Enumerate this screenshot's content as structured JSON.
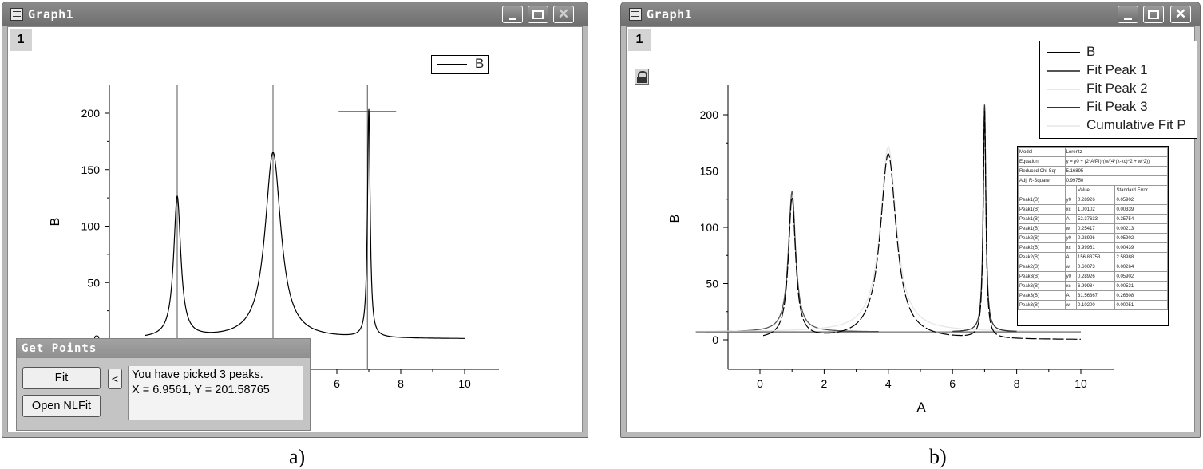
{
  "windows": [
    {
      "title": "Graph1",
      "layer": "1",
      "legend": [
        "B"
      ]
    },
    {
      "title": "Graph1",
      "layer": "1",
      "legend": [
        "B",
        "Fit Peak 1",
        "Fit Peak 2",
        "Fit Peak 3",
        "Cumulative Fit P"
      ]
    }
  ],
  "get_points": {
    "title": "Get Points",
    "fit_label": "Fit",
    "collapse_label": "<",
    "open_nlfit_label": "Open NLFit",
    "message_line1": "You have picked 3 peaks.",
    "message_line2": "X = 6.9561, Y = 201.58765"
  },
  "captions": [
    "a)",
    "b)"
  ],
  "colors": {
    "titlebar": "#7a7a7a",
    "dialog": "#c4c4c4",
    "peak2": "#e6e6e6"
  },
  "results_table": {
    "header": [
      "Model",
      "Lorentz"
    ],
    "rows": [
      [
        "Equation",
        "y = y0 + (2*A/PI)*(w/(4*(x-xc)^2 + w^2))"
      ],
      [
        "Reduced Chi-Sqr",
        "5.16895"
      ],
      [
        "Adj. R-Square",
        "0.99750"
      ],
      [
        "",
        "",
        "Value",
        "Standard Error"
      ],
      [
        "Peak1(B)",
        "y0",
        "0.28926",
        "0.05902"
      ],
      [
        "Peak1(B)",
        "xc",
        "1.00102",
        "0.00339"
      ],
      [
        "Peak1(B)",
        "A",
        "52.37633",
        "0.35754"
      ],
      [
        "Peak1(B)",
        "w",
        "0.25417",
        "0.00213"
      ],
      [
        "Peak2(B)",
        "y0",
        "0.28926",
        "0.05902"
      ],
      [
        "Peak2(B)",
        "xc",
        "3.99961",
        "0.00439"
      ],
      [
        "Peak2(B)",
        "A",
        "156.83753",
        "2.58988"
      ],
      [
        "Peak2(B)",
        "w",
        "0.60073",
        "0.00264"
      ],
      [
        "Peak3(B)",
        "y0",
        "0.28926",
        "0.05902"
      ],
      [
        "Peak3(B)",
        "xc",
        "6.99984",
        "0.00531"
      ],
      [
        "Peak3(B)",
        "A",
        "31.56367",
        "0.26608"
      ],
      [
        "Peak3(B)",
        "w",
        "0.10200",
        "0.00051"
      ]
    ]
  },
  "chart_data": [
    {
      "type": "line",
      "xlabel": "",
      "ylabel": "B",
      "xlim": [
        0,
        10
      ],
      "ylim": [
        0,
        220
      ],
      "xticks": [
        "6",
        "8",
        "10"
      ],
      "yticks": [
        "0",
        "50",
        "100",
        "150",
        "200"
      ],
      "series": [
        {
          "name": "B",
          "peaks": [
            {
              "xc": 1.0,
              "height": 125,
              "w": 0.27
            },
            {
              "xc": 4.0,
              "height": 165,
              "w": 0.6
            },
            {
              "xc": 7.0,
              "height": 202,
              "w": 0.1
            }
          ],
          "baseline": 0
        }
      ],
      "picked_peaks": [
        {
          "x": 1.0
        },
        {
          "x": 4.0
        },
        {
          "x": 6.9561,
          "y": 201.58765
        }
      ]
    },
    {
      "type": "line",
      "xlabel": "A",
      "ylabel": "B",
      "xlim": [
        -1,
        11
      ],
      "ylim": [
        -25,
        225
      ],
      "xticks": [
        "0",
        "2",
        "4",
        "6",
        "8",
        "10"
      ],
      "yticks": [
        "0",
        "50",
        "100",
        "150",
        "200"
      ],
      "series": [
        {
          "name": "B",
          "peaks": [
            {
              "xc": 1.0,
              "height": 125,
              "w": 0.27
            },
            {
              "xc": 4.0,
              "height": 165,
              "w": 0.6
            },
            {
              "xc": 7.0,
              "height": 202,
              "w": 0.1
            }
          ]
        },
        {
          "name": "Fit Peak 1",
          "xc": 1.0,
          "height": 125,
          "w": 0.27
        },
        {
          "name": "Fit Peak 2",
          "xc": 4.0,
          "height": 165,
          "w": 0.6
        },
        {
          "name": "Fit Peak 3",
          "xc": 7.0,
          "height": 202,
          "w": 0.1
        },
        {
          "name": "Cumulative Fit P"
        }
      ]
    }
  ]
}
